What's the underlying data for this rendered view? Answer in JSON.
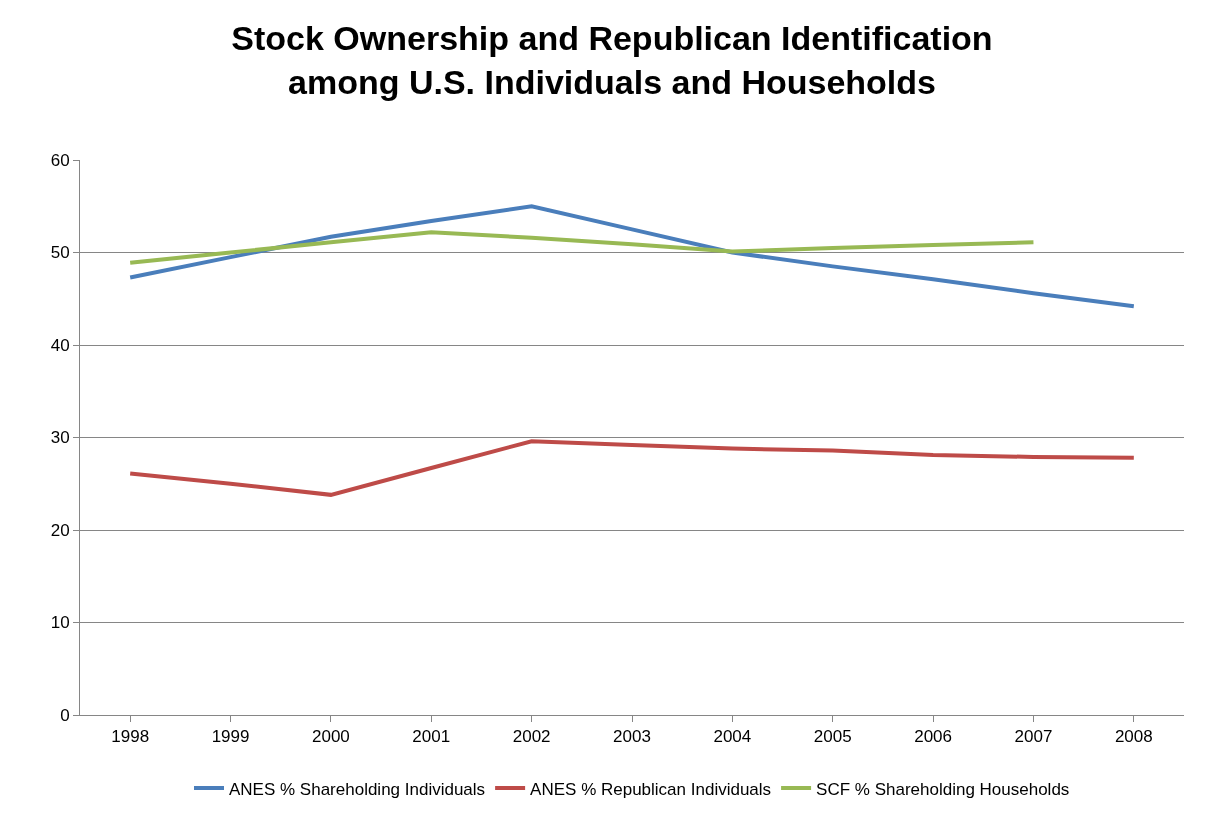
{
  "chart_data": {
    "type": "line",
    "title": "Stock Ownership and Republican Identification\namong U.S. Individuals and Households",
    "categories": [
      "1998",
      "1999",
      "2000",
      "2001",
      "2002",
      "2003",
      "2004",
      "2005",
      "2006",
      "2007",
      "2008"
    ],
    "series": [
      {
        "name": "ANES % Shareholding Individuals",
        "color": "#4a7ebb",
        "values": [
          47.3,
          49.5,
          51.7,
          53.4,
          55.0,
          52.5,
          50.0,
          48.5,
          47.1,
          45.6,
          44.2
        ]
      },
      {
        "name": "ANES % Republican Individuals",
        "color": "#be4b48",
        "values": [
          26.1,
          25.0,
          23.8,
          26.7,
          29.6,
          29.2,
          28.8,
          28.6,
          28.1,
          27.9,
          27.8
        ]
      },
      {
        "name": "SCF % Shareholding Households",
        "color": "#98b954",
        "values": [
          48.9,
          50.0,
          51.1,
          52.2,
          51.6,
          50.9,
          50.1,
          50.5,
          50.8,
          51.1,
          null
        ]
      }
    ],
    "ylim": [
      0,
      60
    ],
    "yticks": [
      0,
      10,
      20,
      30,
      40,
      50,
      60
    ],
    "grid": "y",
    "legend": "bottom",
    "marker": "none",
    "line_style": "solid"
  }
}
